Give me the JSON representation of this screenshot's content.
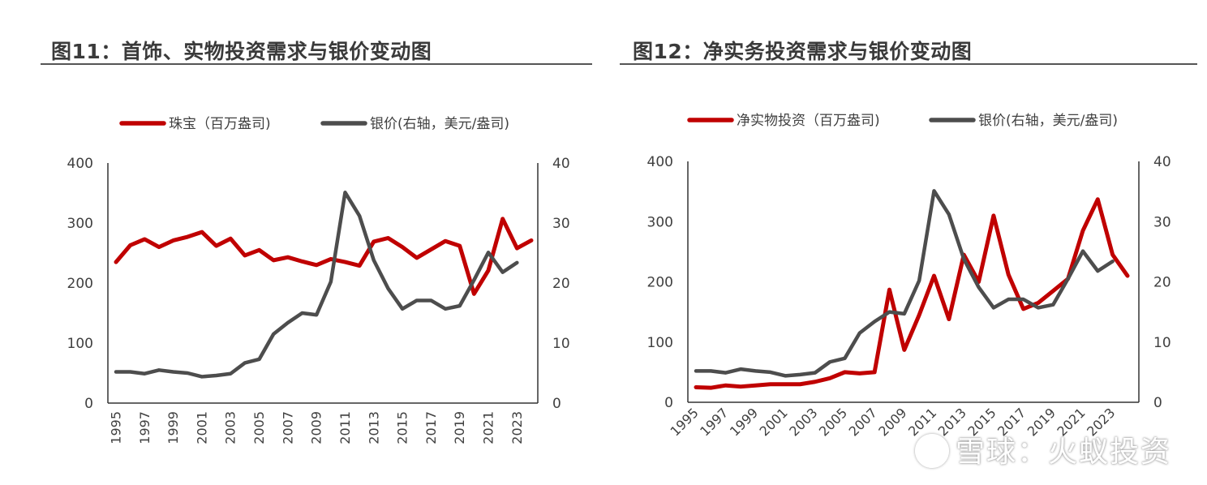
{
  "charts_meta": {
    "left_title": "图11：首饰、实物投资需求与银价变动图",
    "right_title": "图12：净实务投资需求与银价变动图"
  },
  "colors": {
    "primary": "#c00000",
    "silver_price": "#4d4d4d",
    "axis": "#333333"
  },
  "watermark": "雪球：火蚁投资",
  "chart_data": [
    {
      "type": "line",
      "title": "图11：首饰、实物投资需求与银价变动图",
      "x": [
        1995,
        1996,
        1997,
        1998,
        1999,
        2000,
        2001,
        2002,
        2003,
        2004,
        2005,
        2006,
        2007,
        2008,
        2009,
        2010,
        2011,
        2012,
        2013,
        2014,
        2015,
        2016,
        2017,
        2018,
        2019,
        2020,
        2021,
        2022,
        2023,
        2024
      ],
      "x_tick_labels": [
        "1995",
        "1997",
        "1999",
        "2001",
        "2003",
        "2005",
        "2007",
        "2009",
        "2011",
        "2013",
        "2015",
        "2017",
        "2019",
        "2021",
        "2023"
      ],
      "ylim": [
        0,
        400
      ],
      "y_ticks": [
        0,
        100,
        200,
        300,
        400
      ],
      "y2lim": [
        0,
        40
      ],
      "y2_ticks": [
        0,
        10,
        20,
        30,
        40
      ],
      "legend_position": "top",
      "series": [
        {
          "name": "珠宝（百万盎司)",
          "axis": "left",
          "color": "#c00000",
          "values": [
            235,
            263,
            273,
            260,
            271,
            277,
            285,
            262,
            274,
            246,
            255,
            238,
            243,
            236,
            230,
            240,
            235,
            229,
            269,
            275,
            260,
            242,
            256,
            270,
            262,
            182,
            221,
            307,
            258,
            271
          ]
        },
        {
          "name": "银价(右轴，美元/盎司)",
          "axis": "right",
          "color": "#4d4d4d",
          "values": [
            5.2,
            5.2,
            4.9,
            5.5,
            5.2,
            5.0,
            4.4,
            4.6,
            4.9,
            6.7,
            7.3,
            11.5,
            13.4,
            15.0,
            14.7,
            20.2,
            35.1,
            31.2,
            23.8,
            19.1,
            15.7,
            17.1,
            17.1,
            15.7,
            16.2,
            20.5,
            25.1,
            21.8,
            23.4,
            null
          ]
        }
      ]
    },
    {
      "type": "line",
      "title": "图12：净实务投资需求与银价变动图",
      "x": [
        1995,
        1996,
        1997,
        1998,
        1999,
        2000,
        2001,
        2002,
        2003,
        2004,
        2005,
        2006,
        2007,
        2008,
        2009,
        2010,
        2011,
        2012,
        2013,
        2014,
        2015,
        2016,
        2017,
        2018,
        2019,
        2020,
        2021,
        2022,
        2023,
        2024
      ],
      "x_tick_labels": [
        "1995",
        "1997",
        "1999",
        "2001",
        "2003",
        "2005",
        "2007",
        "2009",
        "2011",
        "2013",
        "2015",
        "2017",
        "2019",
        "2021",
        "2023"
      ],
      "ylim": [
        0,
        400
      ],
      "y_ticks": [
        0,
        100,
        200,
        300,
        400
      ],
      "y2lim": [
        0,
        40
      ],
      "y2_ticks": [
        0,
        10,
        20,
        30,
        40
      ],
      "legend_position": "top",
      "series": [
        {
          "name": "净实物投资（百万盎司)",
          "axis": "left",
          "color": "#c00000",
          "values": [
            25,
            24,
            28,
            26,
            28,
            30,
            30,
            30,
            34,
            40,
            50,
            48,
            50,
            187,
            87,
            145,
            210,
            138,
            245,
            200,
            310,
            212,
            155,
            165,
            185,
            205,
            285,
            337,
            245,
            210
          ]
        },
        {
          "name": "银价(右轴，美元/盎司)",
          "axis": "right",
          "color": "#4d4d4d",
          "values": [
            5.2,
            5.2,
            4.9,
            5.5,
            5.2,
            5.0,
            4.4,
            4.6,
            4.9,
            6.7,
            7.3,
            11.5,
            13.4,
            15.0,
            14.7,
            20.2,
            35.1,
            31.2,
            23.8,
            19.1,
            15.7,
            17.1,
            17.1,
            15.7,
            16.2,
            20.5,
            25.1,
            21.8,
            23.4,
            null
          ]
        }
      ]
    }
  ]
}
